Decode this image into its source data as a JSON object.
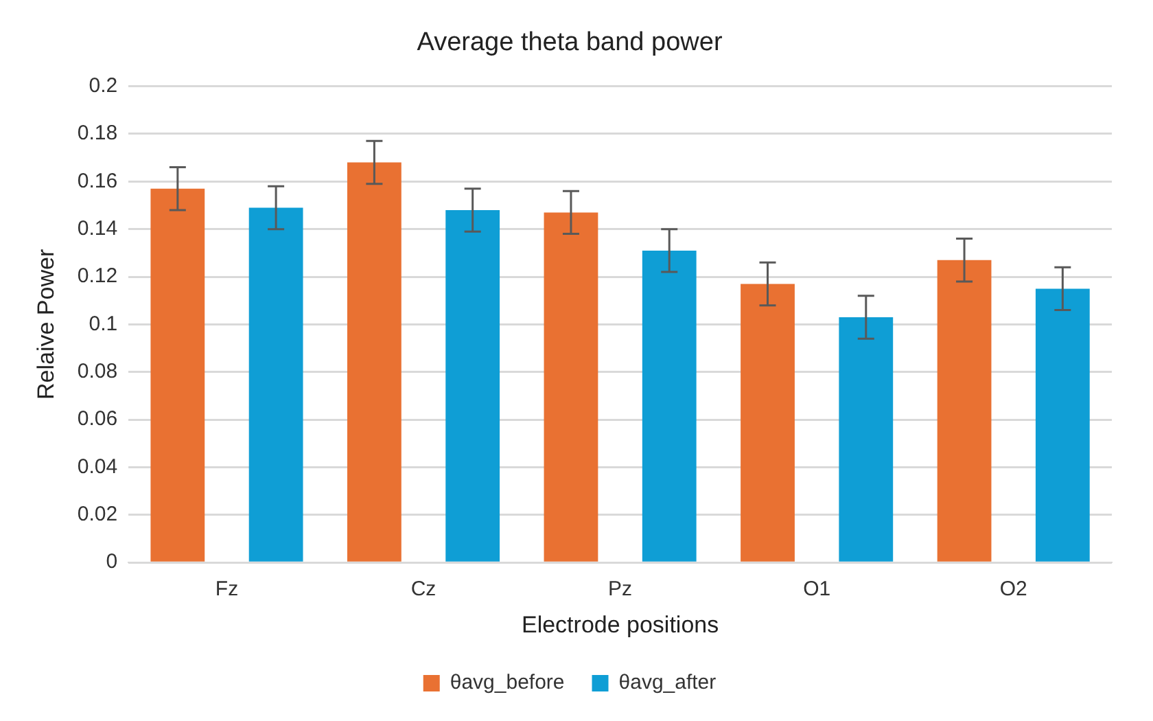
{
  "chart_data": {
    "type": "bar",
    "title": "Average theta band power",
    "xlabel": "Electrode positions",
    "ylabel": "Relaive Power",
    "categories": [
      "Fz",
      "Cz",
      "Pz",
      "O1",
      "O2"
    ],
    "series": [
      {
        "name": "θavg_before",
        "color": "#e97132",
        "values": [
          0.157,
          0.168,
          0.147,
          0.117,
          0.127
        ],
        "errors": [
          0.009,
          0.009,
          0.009,
          0.009,
          0.009
        ]
      },
      {
        "name": "θavg_after",
        "color": "#0f9ed5",
        "values": [
          0.149,
          0.148,
          0.131,
          0.103,
          0.115
        ],
        "errors": [
          0.009,
          0.009,
          0.009,
          0.009,
          0.009
        ]
      }
    ],
    "ylim": [
      0,
      0.2
    ],
    "yticks": [
      0,
      0.02,
      0.04,
      0.06,
      0.08,
      0.1,
      0.12,
      0.14,
      0.16,
      0.18,
      0.2
    ],
    "grid": "y",
    "legend": "bottom"
  }
}
